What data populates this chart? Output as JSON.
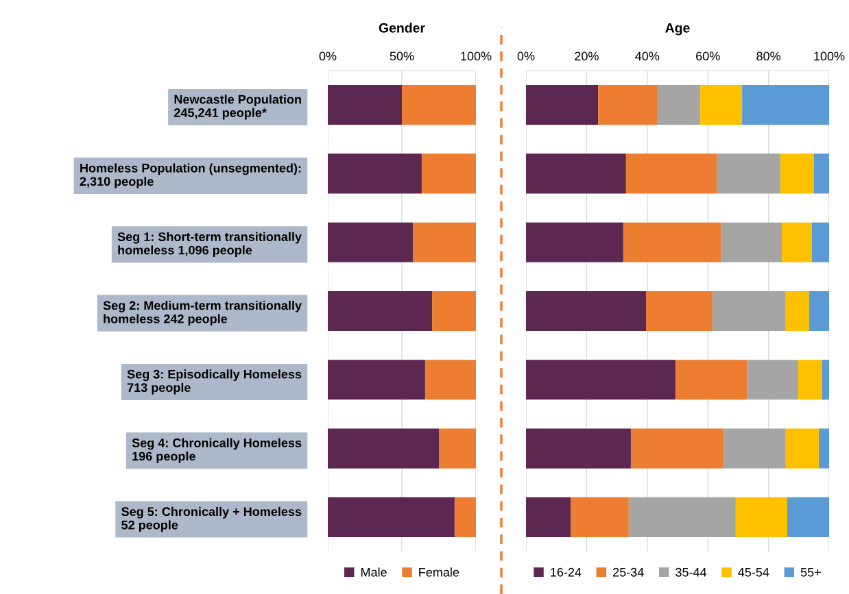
{
  "chart_data": [
    {
      "type": "bar",
      "title": "Gender",
      "orientation": "horizontal",
      "stacked": true,
      "categories": [
        "Newcastle Population\n245,241 people*",
        "Homeless Population (unsegmented):\n2,310 people",
        "Seg 1: Short-term transitionally\nhomeless 1,096 people",
        "Seg 2: Medium-term transitionally\nhomeless 242 people",
        "Seg 3: Episodically Homeless\n713 people",
        "Seg 4: Chronically Homeless\n196 people",
        "Seg 5: Chronically + Homeless\n52 people"
      ],
      "series": [
        {
          "name": "Male",
          "color": "#5c2751",
          "values": [
            50.0,
            63.4,
            57.4,
            70.4,
            65.7,
            75.0,
            85.6
          ]
        },
        {
          "name": "Female",
          "color": "#ed7d31",
          "values": [
            50.0,
            36.6,
            42.6,
            29.6,
            34.3,
            25.0,
            14.4
          ]
        }
      ],
      "xlim": [
        0,
        100
      ],
      "xticks": [
        {
          "value": 0,
          "label": "0%"
        },
        {
          "value": 50,
          "label": "50%"
        },
        {
          "value": 100,
          "label": "100%"
        }
      ],
      "grid": "x",
      "legend": "bottom"
    },
    {
      "type": "bar",
      "title": "Age",
      "orientation": "horizontal",
      "stacked": true,
      "series": [
        {
          "name": "16-24",
          "color": "#5c2751",
          "values": [
            23.8,
            33.0,
            32.1,
            39.6,
            49.3,
            34.6,
            14.7
          ]
        },
        {
          "name": "25-34",
          "color": "#ed7d31",
          "values": [
            19.6,
            29.9,
            32.2,
            21.9,
            23.6,
            30.6,
            19.2
          ]
        },
        {
          "name": "35-44",
          "color": "#a5a5a5",
          "values": [
            14.1,
            21.0,
            20.1,
            24.0,
            16.9,
            20.5,
            35.3
          ]
        },
        {
          "name": "45-54",
          "color": "#ffc000",
          "values": [
            13.8,
            11.1,
            9.9,
            7.9,
            7.9,
            10.9,
            17.0
          ]
        },
        {
          "name": "55+",
          "color": "#5b9bd5",
          "values": [
            28.7,
            5.0,
            5.7,
            6.6,
            2.3,
            3.4,
            13.8
          ]
        }
      ],
      "xlim": [
        0,
        100
      ],
      "xticks": [
        {
          "value": 0,
          "label": "0%"
        },
        {
          "value": 20,
          "label": "20%"
        },
        {
          "value": 40,
          "label": "40%"
        },
        {
          "value": 60,
          "label": "60%"
        },
        {
          "value": 80,
          "label": "80%"
        },
        {
          "value": 100,
          "label": "100%"
        }
      ],
      "grid": "x",
      "legend": "bottom",
      "tick_labels": "x"
    }
  ]
}
